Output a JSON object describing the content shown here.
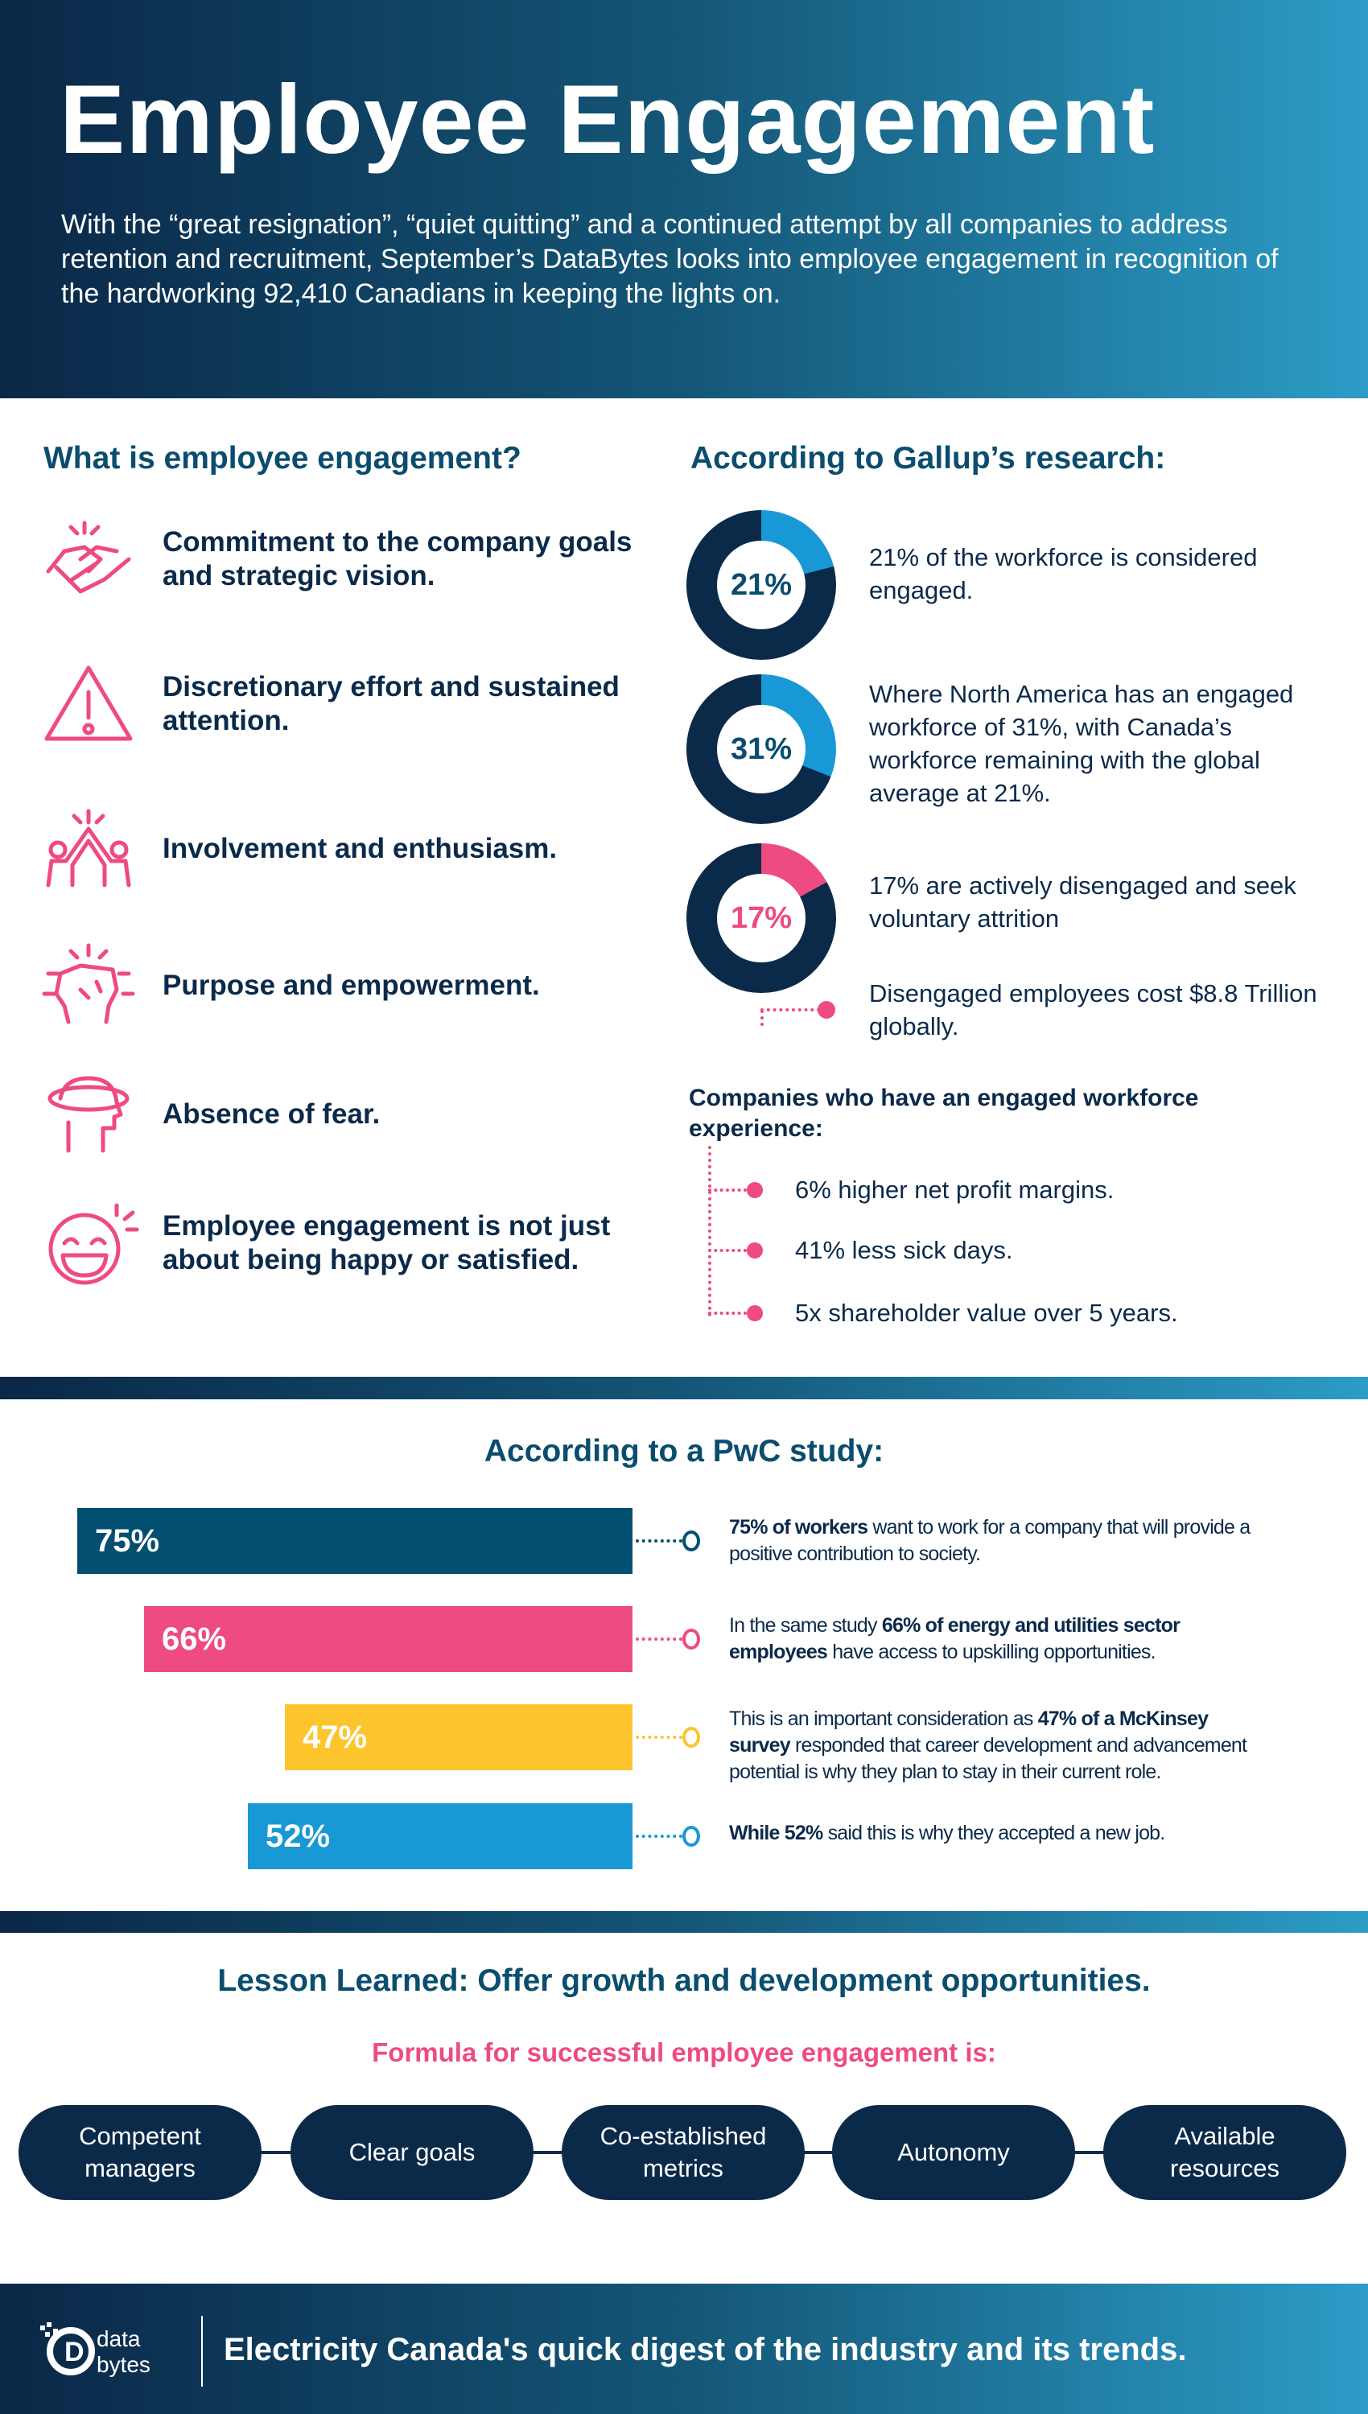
{
  "header": {
    "title": "Employee Engagement",
    "intro": "With the “great resignation”, “quiet quitting” and a continued attempt by all companies to address retention and recruitment, September’s DataBytes looks into employee engagement in recognition of the hardworking 92,410 Canadians in keeping the lights on."
  },
  "what": {
    "heading": "What is employee engagement?",
    "items": [
      {
        "icon": "handshake-icon",
        "text": "Commitment to the company goals and strategic vision."
      },
      {
        "icon": "warning-icon",
        "text": "Discretionary effort and sustained attention."
      },
      {
        "icon": "high-five-icon",
        "text": "Involvement and enthusiasm."
      },
      {
        "icon": "raised-fist-icon",
        "text": "Purpose and empowerment."
      },
      {
        "icon": "head-orbit-icon",
        "text": "Absence of fear."
      },
      {
        "icon": "smiley-icon",
        "text": "Employee engagement is not just about being happy or satisfied."
      }
    ]
  },
  "gallup": {
    "heading": "According to Gallup’s research:",
    "stats": [
      {
        "label": "21%",
        "value": 21,
        "color": "#1899d6",
        "text": "21% of the workforce is considered engaged."
      },
      {
        "label": "31%",
        "value": 31,
        "color": "#1899d6",
        "text": "Where North America has an engaged workforce of 31%, with Canada’s workforce remaining with the global average at 21%."
      },
      {
        "label": "17%",
        "value": 17,
        "color": "#ee4b80",
        "text": "17% are actively disengaged and seek voluntary attrition"
      }
    ],
    "cost": "Disengaged employees cost $8.8 Trillion globally.",
    "companies_heading": "Companies who have an engaged workforce experience:",
    "benefits": [
      "6% higher net profit margins.",
      "41% less sick days.",
      "5x shareholder value over 5 years."
    ]
  },
  "pwc": {
    "heading": "According to a PwC study:",
    "bars": [
      {
        "label": "75%",
        "value": 75,
        "color": "#034f71",
        "pre": "",
        "bold": "75% of workers",
        "post": " want to work for a company that will provide a positive contribution to society."
      },
      {
        "label": "66%",
        "value": 66,
        "color": "#ee4b80",
        "pre": "In the same study ",
        "bold": "66% of energy and utilities sector employees",
        "post": " have access to upskilling opportunities."
      },
      {
        "label": "47%",
        "value": 47,
        "color": "#fcc52e",
        "pre": "This is an important consideration as ",
        "bold": "47% of a McKinsey survey",
        "post": " responded that career development and advancement potential is why they plan to stay in their current role."
      },
      {
        "label": "52%",
        "value": 52,
        "color": "#1899d6",
        "pre": "",
        "bold": "While 52%",
        "post": " said this is why they accepted a new job."
      }
    ]
  },
  "lesson": {
    "heading": "Lesson Learned: Offer growth and development opportunities.",
    "formula": "Formula for successful employee engagement is:",
    "pills": [
      "Competent managers",
      "Clear goals",
      "Co-established metrics",
      "Autonomy",
      "Available resources"
    ]
  },
  "footer": {
    "logo": "data bytes",
    "tagline": "Electricity Canada's quick digest of the industry and its trends."
  }
}
